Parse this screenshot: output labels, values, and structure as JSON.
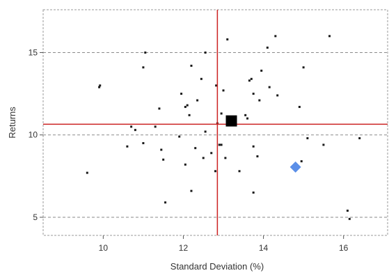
{
  "chart_data": {
    "type": "scatter",
    "title": "",
    "xlabel": "Standard Deviation (%)",
    "ylabel": "Returns",
    "xlim": [
      8.5,
      17.1
    ],
    "ylim": [
      3.9,
      17.6
    ],
    "xticks": [
      10,
      12,
      14,
      16
    ],
    "yticks": [
      5,
      10,
      15
    ],
    "grid": "horizontal dashed at y ticks",
    "reference_lines": {
      "x": 12.85,
      "y": 10.65,
      "color": "#cc2222"
    },
    "highlights": [
      {
        "marker": "square",
        "x": 13.2,
        "y": 10.85,
        "color": "#000000"
      },
      {
        "marker": "diamond",
        "x": 14.8,
        "y": 8.05,
        "color": "#5b8fe8"
      }
    ],
    "points": [
      [
        9.6,
        7.7
      ],
      [
        9.9,
        12.9
      ],
      [
        9.92,
        13.0
      ],
      [
        10.6,
        9.3
      ],
      [
        10.7,
        10.5
      ],
      [
        10.8,
        10.3
      ],
      [
        11.0,
        9.5
      ],
      [
        11.0,
        14.1
      ],
      [
        11.05,
        15.0
      ],
      [
        11.3,
        10.5
      ],
      [
        11.4,
        11.6
      ],
      [
        11.45,
        9.1
      ],
      [
        11.5,
        8.5
      ],
      [
        11.55,
        5.9
      ],
      [
        11.9,
        9.9
      ],
      [
        11.95,
        12.5
      ],
      [
        12.05,
        11.7
      ],
      [
        12.05,
        8.2
      ],
      [
        12.1,
        11.8
      ],
      [
        12.15,
        11.2
      ],
      [
        12.2,
        14.2
      ],
      [
        12.2,
        6.6
      ],
      [
        12.3,
        9.2
      ],
      [
        12.35,
        12.1
      ],
      [
        12.45,
        13.4
      ],
      [
        12.5,
        8.6
      ],
      [
        12.55,
        10.2
      ],
      [
        12.55,
        15.0
      ],
      [
        12.7,
        8.9
      ],
      [
        12.8,
        7.8
      ],
      [
        12.82,
        13.0
      ],
      [
        12.85,
        10.7
      ],
      [
        12.9,
        9.4
      ],
      [
        12.95,
        9.4
      ],
      [
        12.95,
        11.3
      ],
      [
        13.0,
        12.7
      ],
      [
        13.05,
        8.6
      ],
      [
        13.1,
        15.8
      ],
      [
        13.4,
        7.8
      ],
      [
        13.55,
        11.2
      ],
      [
        13.6,
        11.0
      ],
      [
        13.65,
        13.3
      ],
      [
        13.7,
        13.4
      ],
      [
        13.75,
        6.5
      ],
      [
        13.75,
        9.3
      ],
      [
        13.75,
        12.5
      ],
      [
        13.85,
        8.7
      ],
      [
        13.9,
        12.1
      ],
      [
        13.95,
        13.9
      ],
      [
        14.1,
        15.3
      ],
      [
        14.15,
        12.9
      ],
      [
        14.3,
        16.0
      ],
      [
        14.35,
        12.4
      ],
      [
        14.9,
        11.7
      ],
      [
        14.95,
        8.4
      ],
      [
        15.0,
        14.1
      ],
      [
        15.1,
        9.8
      ],
      [
        15.5,
        9.4
      ],
      [
        15.65,
        16.0
      ],
      [
        16.1,
        5.4
      ],
      [
        16.15,
        4.9
      ],
      [
        16.4,
        9.8
      ]
    ]
  }
}
